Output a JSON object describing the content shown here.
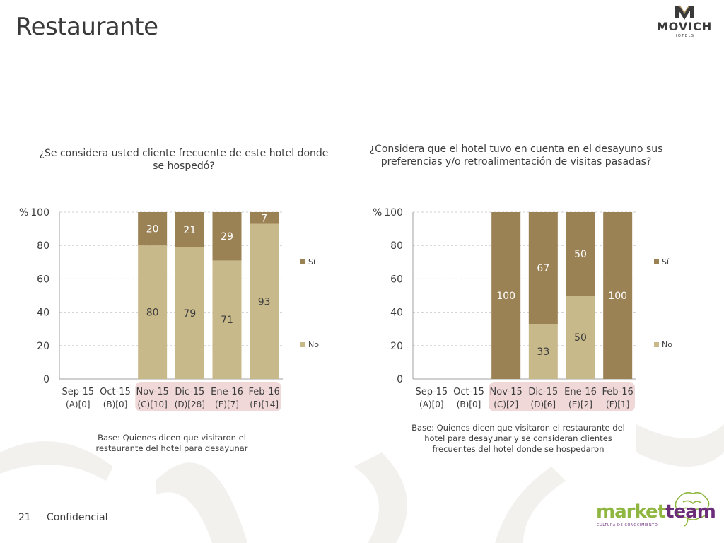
{
  "page": {
    "title": "Restaurante",
    "page_number": "21",
    "confidential": "Confidencial"
  },
  "logos": {
    "movich_name": "MOVICH",
    "movich_sub": "HOTELS",
    "marketteam_part1": "market",
    "marketteam_part2": "team",
    "marketteam_sub": "CULTURA DE CONOCIMIENTO"
  },
  "colors": {
    "si": "#9b8255",
    "no": "#c8b98b",
    "highlight": "#f0d8d8",
    "grid": "#d0d0d0",
    "axis": "#a0a0a0",
    "text": "#3c3c3c",
    "si_label": "#ffffff",
    "no_label": "#3c3c3c"
  },
  "chart_data": [
    {
      "type": "bar",
      "stacked": true,
      "title": "¿Se considera usted cliente frecuente de este hotel donde se hospedó?",
      "y_unit_label": "%",
      "ylim": [
        0,
        100
      ],
      "yticks": [
        0,
        20,
        40,
        60,
        80,
        100
      ],
      "grid": true,
      "legend_position": "right",
      "categories": [
        "Sep-15",
        "Oct-15",
        "Nov-15",
        "Dic-15",
        "Ene-16",
        "Feb-16"
      ],
      "category_sublabels": [
        "(A)[0]",
        "(B)[0]",
        "(C)[10]",
        "(D)[28]",
        "(E)[7]",
        "(F)[14]"
      ],
      "highlighted_categories": [
        "Nov-15",
        "Dic-15",
        "Ene-16",
        "Feb-16"
      ],
      "series": [
        {
          "name": "No",
          "values": [
            null,
            null,
            80,
            79,
            71,
            93
          ]
        },
        {
          "name": "Sí",
          "values": [
            null,
            null,
            20,
            21,
            29,
            7
          ]
        }
      ],
      "legend": [
        "Sí",
        "No"
      ],
      "base_note": "Base: Quienes dicen que visitaron el restaurante del hotel para desayunar"
    },
    {
      "type": "bar",
      "stacked": true,
      "title": "¿Considera que el hotel tuvo en cuenta en el desayuno sus preferencias y/o retroalimentación de visitas pasadas?",
      "y_unit_label": "%",
      "ylim": [
        0,
        100
      ],
      "yticks": [
        0,
        20,
        40,
        60,
        80,
        100
      ],
      "grid": true,
      "legend_position": "right",
      "categories": [
        "Sep-15",
        "Oct-15",
        "Nov-15",
        "Dic-15",
        "Ene-16",
        "Feb-16"
      ],
      "category_sublabels": [
        "(A)[0]",
        "(B)[0]",
        "(C)[2]",
        "(D)[6]",
        "(E)[2]",
        "(F)[1]"
      ],
      "highlighted_categories": [
        "Nov-15",
        "Dic-15",
        "Ene-16",
        "Feb-16"
      ],
      "series": [
        {
          "name": "No",
          "values": [
            null,
            null,
            0,
            33,
            50,
            0
          ]
        },
        {
          "name": "Sí",
          "values": [
            null,
            null,
            100,
            67,
            50,
            100
          ]
        }
      ],
      "legend": [
        "Sí",
        "No"
      ],
      "base_note": "Base: Quienes dicen que visitaron el restaurante del hotel para desayunar y se consideran clientes frecuentes del hotel donde se hospedaron"
    }
  ]
}
